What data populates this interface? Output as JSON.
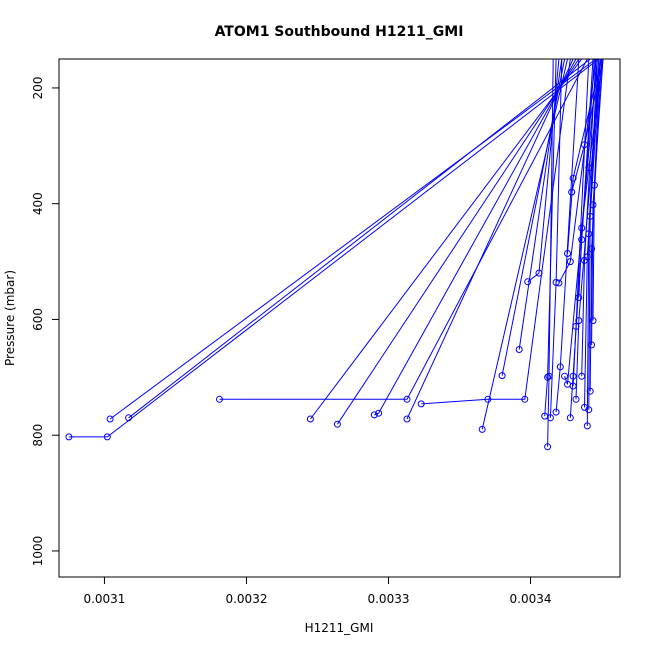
{
  "chart_data": {
    "type": "line",
    "title": "ATOM1 Southbound H1211_GMI",
    "xlabel": "H1211_GMI",
    "ylabel": "Pressure (mbar)",
    "xlim": [
      0.003068,
      0.003463
    ],
    "ylim": [
      1045,
      150
    ],
    "y_axis_reversed": true,
    "x_ticks": [
      {
        "value": 0.0031,
        "label": "0.0031"
      },
      {
        "value": 0.0032,
        "label": "0.0032"
      },
      {
        "value": 0.0033,
        "label": "0.0033"
      },
      {
        "value": 0.0034,
        "label": "0.0034"
      }
    ],
    "y_ticks": [
      {
        "value": 200,
        "label": "200"
      },
      {
        "value": 400,
        "label": "400"
      },
      {
        "value": 600,
        "label": "600"
      },
      {
        "value": 800,
        "label": "800"
      },
      {
        "value": 1000,
        "label": "1000"
      }
    ],
    "series_color": "#0000ff",
    "marker": "open-circle",
    "grid": false,
    "legend": "none",
    "series": [
      {
        "points": [
          [
            0.003075,
            803
          ],
          [
            0.003102,
            803
          ],
          [
            0.003448,
            150
          ]
        ]
      },
      {
        "points": [
          [
            0.003104,
            772
          ],
          [
            0.003446,
            150
          ]
        ]
      },
      {
        "points": [
          [
            0.003117,
            770
          ],
          [
            0.003442,
            150
          ]
        ]
      },
      {
        "points": [
          [
            0.003181,
            738
          ],
          [
            0.003313,
            738
          ],
          [
            0.00344,
            150
          ]
        ]
      },
      {
        "points": [
          [
            0.003245,
            772
          ],
          [
            0.003436,
            150
          ]
        ]
      },
      {
        "points": [
          [
            0.003264,
            781
          ],
          [
            0.003434,
            150
          ]
        ]
      },
      {
        "points": [
          [
            0.00329,
            765
          ],
          [
            0.003293,
            762
          ],
          [
            0.003432,
            150
          ]
        ]
      },
      {
        "points": [
          [
            0.003313,
            772
          ],
          [
            0.00343,
            150
          ]
        ]
      },
      {
        "points": [
          [
            0.003323,
            746
          ],
          [
            0.00337,
            738
          ],
          [
            0.003396,
            738
          ],
          [
            0.003428,
            150
          ]
        ]
      },
      {
        "points": [
          [
            0.003366,
            790
          ],
          [
            0.003426,
            150
          ]
        ]
      },
      {
        "points": [
          [
            0.00338,
            697
          ],
          [
            0.003424,
            150
          ]
        ]
      },
      {
        "points": [
          [
            0.003392,
            652
          ],
          [
            0.003422,
            150
          ]
        ]
      },
      {
        "points": [
          [
            0.003398,
            535
          ],
          [
            0.003406,
            520
          ],
          [
            0.00342,
            150
          ]
        ]
      },
      {
        "points": [
          [
            0.00341,
            767
          ],
          [
            0.003412,
            700
          ],
          [
            0.003418,
            150
          ]
        ]
      },
      {
        "points": [
          [
            0.003412,
            820
          ],
          [
            0.003413,
            698
          ],
          [
            0.003416,
            150
          ]
        ]
      },
      {
        "points": [
          [
            0.003414,
            770
          ],
          [
            0.003418,
            536
          ],
          [
            0.003422,
            150
          ]
        ]
      },
      {
        "points": [
          [
            0.003418,
            760
          ],
          [
            0.003421,
            682
          ],
          [
            0.003434,
            150
          ]
        ]
      },
      {
        "points": [
          [
            0.00342,
            537
          ],
          [
            0.003428,
            500
          ],
          [
            0.003446,
            150
          ]
        ]
      },
      {
        "points": [
          [
            0.003424,
            698
          ],
          [
            0.003426,
            712
          ],
          [
            0.003447,
            150
          ]
        ]
      },
      {
        "points": [
          [
            0.003428,
            770
          ],
          [
            0.00343,
            698
          ],
          [
            0.003444,
            150
          ]
        ]
      },
      {
        "points": [
          [
            0.00343,
            715
          ],
          [
            0.003432,
            612
          ],
          [
            0.003441,
            150
          ]
        ]
      },
      {
        "points": [
          [
            0.003432,
            738
          ],
          [
            0.003434,
            602
          ],
          [
            0.003449,
            150
          ]
        ]
      },
      {
        "points": [
          [
            0.003434,
            562
          ],
          [
            0.003436,
            462
          ],
          [
            0.003445,
            150
          ]
        ]
      },
      {
        "points": [
          [
            0.003436,
            698
          ],
          [
            0.003438,
            498
          ],
          [
            0.003446,
            150
          ]
        ]
      },
      {
        "points": [
          [
            0.003438,
            752
          ],
          [
            0.00344,
            492
          ],
          [
            0.003448,
            150
          ]
        ]
      },
      {
        "points": [
          [
            0.00344,
            784
          ],
          [
            0.003441,
            452
          ],
          [
            0.003447,
            150
          ]
        ]
      },
      {
        "points": [
          [
            0.003441,
            756
          ],
          [
            0.003442,
            422
          ],
          [
            0.003449,
            150
          ]
        ]
      },
      {
        "points": [
          [
            0.003442,
            724
          ],
          [
            0.003443,
            478
          ],
          [
            0.00345,
            150
          ]
        ]
      },
      {
        "points": [
          [
            0.003443,
            644
          ],
          [
            0.003444,
            402
          ],
          [
            0.003451,
            150
          ]
        ]
      },
      {
        "points": [
          [
            0.003444,
            602
          ],
          [
            0.003445,
            368
          ],
          [
            0.003449,
            150
          ]
        ]
      },
      {
        "points": [
          [
            0.003426,
            486
          ],
          [
            0.00343,
            356
          ],
          [
            0.00345,
            150
          ]
        ]
      },
      {
        "points": [
          [
            0.003436,
            442
          ],
          [
            0.003441,
            338
          ],
          [
            0.003451,
            150
          ]
        ]
      },
      {
        "points": [
          [
            0.003429,
            380
          ],
          [
            0.003438,
            298
          ],
          [
            0.003451,
            150
          ]
        ]
      }
    ]
  }
}
